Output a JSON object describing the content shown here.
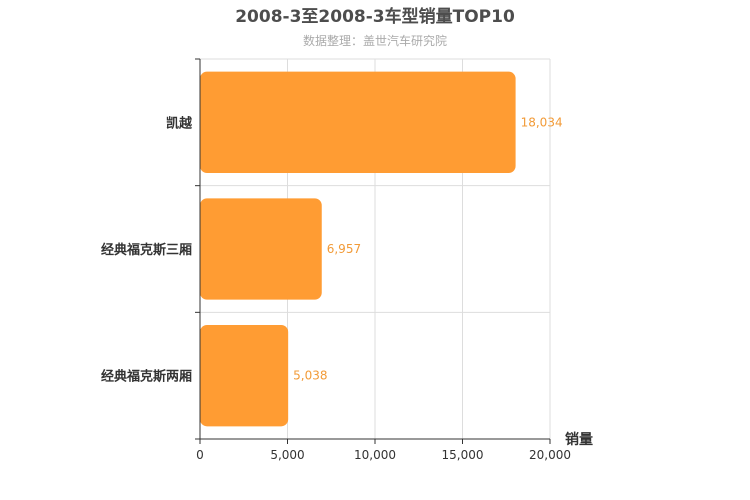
{
  "chart_data": {
    "type": "bar",
    "orientation": "horizontal",
    "title": "2008-3至2008-3车型销量TOP10",
    "subtitle": "数据整理：盖世汽车研究院",
    "categories": [
      "凯越",
      "经典福克斯三厢",
      "经典福克斯两厢"
    ],
    "values": [
      18034,
      6957,
      5038
    ],
    "value_labels": [
      "18,034",
      "6,957",
      "5,038"
    ],
    "xlabel": "销量",
    "ylabel": "",
    "xlim": [
      0,
      20000
    ],
    "xticks": [
      0,
      5000,
      10000,
      15000,
      20000
    ],
    "xtick_labels": [
      "0",
      "5,000",
      "10,000",
      "15,000",
      "20,000"
    ],
    "grid": true,
    "colors": {
      "bar": "#ff9c33",
      "data_label": "#f29b38",
      "grid": "#dddddd",
      "axis": "#333333"
    }
  }
}
